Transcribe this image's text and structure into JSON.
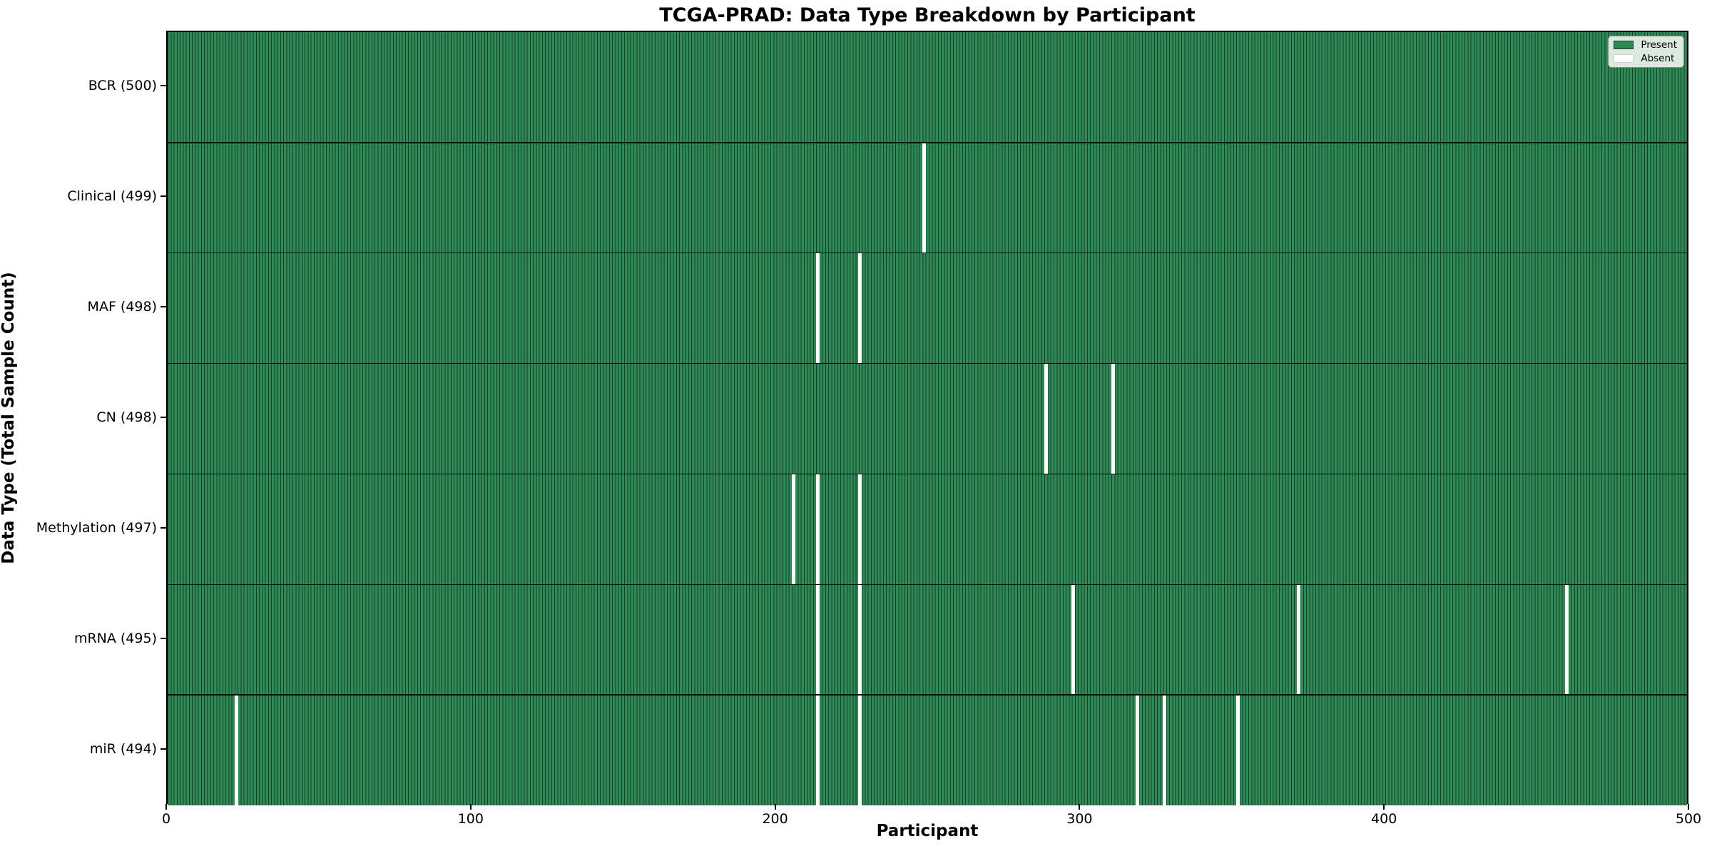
{
  "title": "TCGA-PRAD: Data Type Breakdown by Participant",
  "chart_data": {
    "type": "heatmap",
    "title": "TCGA-PRAD: Data Type Breakdown by Participant",
    "xlabel": "Participant",
    "ylabel": "Data Type (Total Sample Count)",
    "x_range": [
      0,
      500
    ],
    "x_ticks": [
      0,
      100,
      200,
      300,
      400,
      500
    ],
    "n_participants": 500,
    "grid": false,
    "legend_position": "upper right",
    "legend": [
      {
        "label": "Present",
        "color": "#2e8b57"
      },
      {
        "label": "Absent",
        "color": "#ffffff"
      }
    ],
    "colors": {
      "present_fill": "#2e8b57",
      "bar_edge": "#15402a",
      "absent_fill": "#ffffff",
      "row_separator": "#0a0a0a",
      "legend_bg": "#dce9e1"
    },
    "rows": [
      {
        "name": "bcr",
        "label": "BCR (500)",
        "total": 500,
        "absent_participants": []
      },
      {
        "name": "clinical",
        "label": "Clinical (499)",
        "total": 499,
        "absent_participants": [
          248
        ]
      },
      {
        "name": "maf",
        "label": "MAF (498)",
        "total": 498,
        "absent_participants": [
          213,
          227
        ]
      },
      {
        "name": "cn",
        "label": "CN (498)",
        "total": 498,
        "absent_participants": [
          288,
          310
        ]
      },
      {
        "name": "methylation",
        "label": "Methylation (497)",
        "total": 497,
        "absent_participants": [
          205,
          213,
          227
        ]
      },
      {
        "name": "mrna",
        "label": "mRNA (495)",
        "total": 495,
        "absent_participants": [
          213,
          227,
          297,
          371,
          459
        ]
      },
      {
        "name": "mir",
        "label": "miR (494)",
        "total": 494,
        "absent_participants": [
          22,
          213,
          227,
          318,
          327,
          351
        ]
      }
    ]
  }
}
